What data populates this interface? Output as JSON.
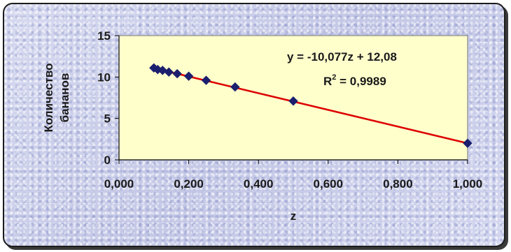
{
  "chart_data": {
    "type": "scatter",
    "xlabel": "z",
    "ylabel_lines": [
      "Количество",
      "бананов"
    ],
    "xlim": [
      0,
      1
    ],
    "ylim": [
      0,
      15
    ],
    "x_ticks": [
      "0,000",
      "0,200",
      "0,400",
      "0,600",
      "0,800",
      "1,000"
    ],
    "y_ticks": [
      "0",
      "5",
      "10",
      "15"
    ],
    "points": [
      {
        "x": 0.1,
        "y": 11.1
      },
      {
        "x": 0.111,
        "y": 10.9
      },
      {
        "x": 0.125,
        "y": 10.8
      },
      {
        "x": 0.143,
        "y": 10.6
      },
      {
        "x": 0.167,
        "y": 10.4
      },
      {
        "x": 0.2,
        "y": 10.1
      },
      {
        "x": 0.25,
        "y": 9.6
      },
      {
        "x": 0.333,
        "y": 8.8
      },
      {
        "x": 0.5,
        "y": 7.1
      },
      {
        "x": 1.0,
        "y": 2.0
      }
    ],
    "trendline": {
      "slope": -10.077,
      "intercept": 12.08
    },
    "equation_label": "y = -10,077z + 12,08",
    "r2_label": "R",
    "r2_sup": "2",
    "r2_value": " = 0,9989",
    "colors": {
      "plot_bg": "#ffffcc",
      "marker": "#1b1f6e",
      "trendline": "#dd0000"
    }
  }
}
